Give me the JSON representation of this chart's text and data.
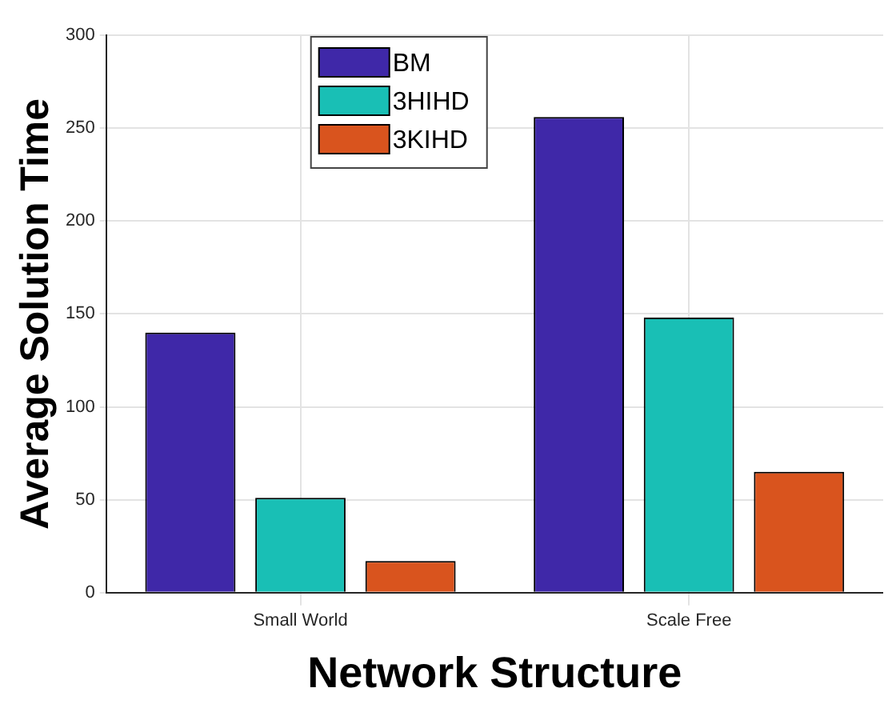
{
  "chart_data": {
    "type": "bar",
    "xlabel": "Network Structure",
    "ylabel": "Average Solution Time",
    "categories": [
      "Small World",
      "Scale Free"
    ],
    "series": [
      {
        "name": "BM",
        "color": "#3f28a8",
        "values": [
          140,
          256
        ]
      },
      {
        "name": "3HIHD",
        "color": "#19bfb5",
        "values": [
          51,
          148
        ]
      },
      {
        "name": "3KIHD",
        "color": "#d9541e",
        "values": [
          17,
          65
        ]
      }
    ],
    "ylim": [
      0,
      300
    ],
    "yticks": [
      0,
      50,
      100,
      150,
      200,
      250,
      300
    ],
    "grid": true,
    "legend": "top left"
  }
}
